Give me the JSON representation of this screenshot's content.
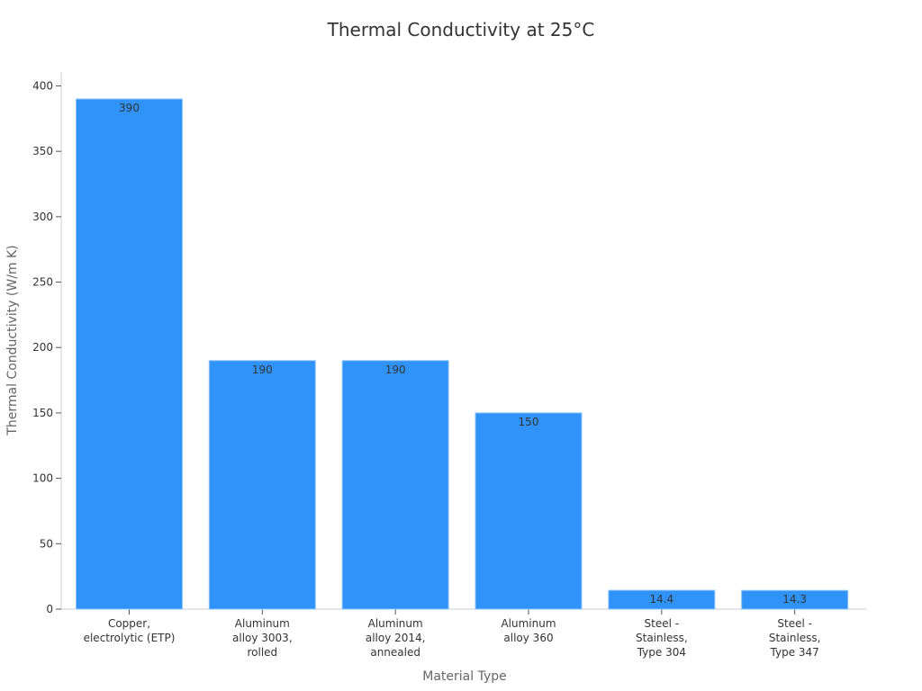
{
  "chart_data": {
    "type": "bar",
    "title": "Thermal Conductivity at 25°C",
    "xlabel": "Material Type",
    "ylabel": "Thermal Conductivity (W/m K)",
    "categories": [
      [
        "Copper,",
        "electrolytic (ETP)"
      ],
      [
        "Aluminum",
        "alloy 3003,",
        "rolled"
      ],
      [
        "Aluminum",
        "alloy 2014,",
        "annealed"
      ],
      [
        "Aluminum",
        "alloy 360"
      ],
      [
        "Steel -",
        "Stainless,",
        "Type 304"
      ],
      [
        "Steel -",
        "Stainless,",
        "Type 347"
      ]
    ],
    "values": [
      390,
      190,
      190,
      150,
      14.4,
      14.3
    ],
    "data_labels": [
      "390",
      "190",
      "190",
      "150",
      "14.4",
      "14.3"
    ],
    "yticks": [
      0,
      50,
      100,
      150,
      200,
      250,
      300,
      350,
      400
    ],
    "ylim": [
      0,
      410
    ],
    "grid": false,
    "colors": {
      "bar": "#2f93fa",
      "bar_edge": "#8ec4f8"
    }
  }
}
